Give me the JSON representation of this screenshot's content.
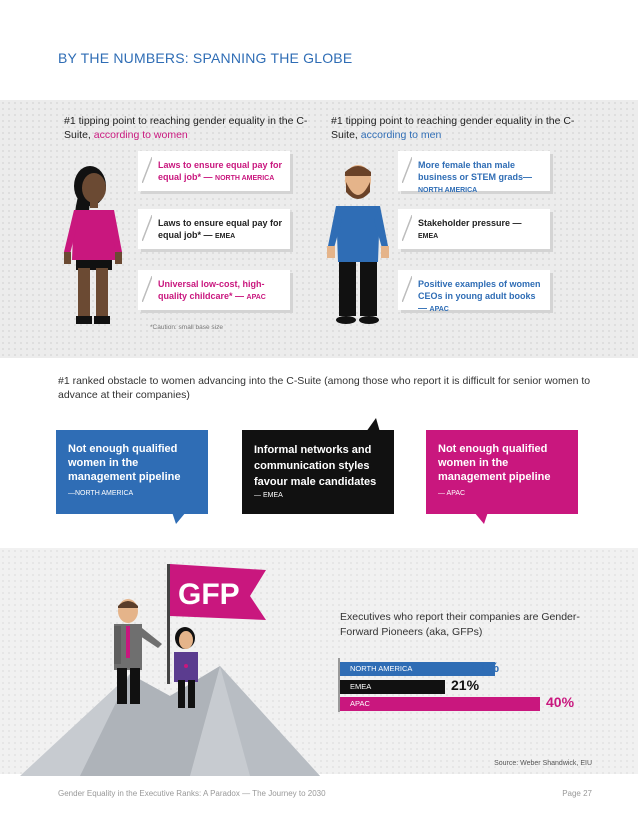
{
  "header": {
    "title": "BY THE NUMBERS: SPANNING THE GLOBE"
  },
  "tipping": {
    "women": {
      "head_prefix": "#1 tipping point to reaching gender equality in the C-Suite, ",
      "head_accent": "according to women",
      "cards": [
        {
          "text": "Laws to ensure equal pay for equal job* — ",
          "region": "NORTH AMERICA"
        },
        {
          "text": "Laws to ensure equal pay for equal job* — ",
          "region": "EMEA"
        },
        {
          "text": "Universal low-cost, high-quality childcare* — ",
          "region": "APAC"
        }
      ]
    },
    "men": {
      "head_prefix": "#1 tipping point to reaching gender equality in the C-Suite, ",
      "head_accent": "according to men",
      "cards": [
        {
          "text": "More female than male business or STEM grads—",
          "region": "NORTH AMERICA"
        },
        {
          "text": "Stakeholder pressure — ",
          "region": "EMEA"
        },
        {
          "text": "Positive examples of women CEOs in young adult books — ",
          "region": "APAC"
        }
      ]
    },
    "caution": "*Caution: small base size"
  },
  "obstacles": {
    "head": "#1 ranked obstacle to women advancing into the C-Suite (among those who report it is difficult for senior women to advance at their companies)",
    "bubbles": [
      {
        "text": "Not enough qualified women in the management pipeline",
        "region": "—NORTH AMERICA"
      },
      {
        "text": "Informal networks and communication styles favour male candidates",
        "region": "— EMEA"
      },
      {
        "text": "Not enough qualified women in the management pipeline",
        "region": "— APAC"
      }
    ]
  },
  "gfp": {
    "flag": "GFP",
    "head": "Executives who report their companies are Gender-Forward Pioneers (aka, GFPs)",
    "source": "Source: Weber Shandwick, EIU"
  },
  "chart_data": {
    "type": "bar",
    "orientation": "horizontal",
    "categories": [
      "NORTH AMERICA",
      "EMEA",
      "APAC"
    ],
    "values": [
      31,
      21,
      40
    ],
    "value_labels": [
      "31%",
      "21%",
      "40%"
    ],
    "colors": [
      "#2f6db5",
      "#111111",
      "#c9177e"
    ],
    "title": "Executives who report their companies are Gender-Forward Pioneers (aka, GFPs)"
  },
  "footer": {
    "left": "Gender Equality in the Executive Ranks: A Paradox — The Journey to 2030",
    "right": "Page 27"
  }
}
